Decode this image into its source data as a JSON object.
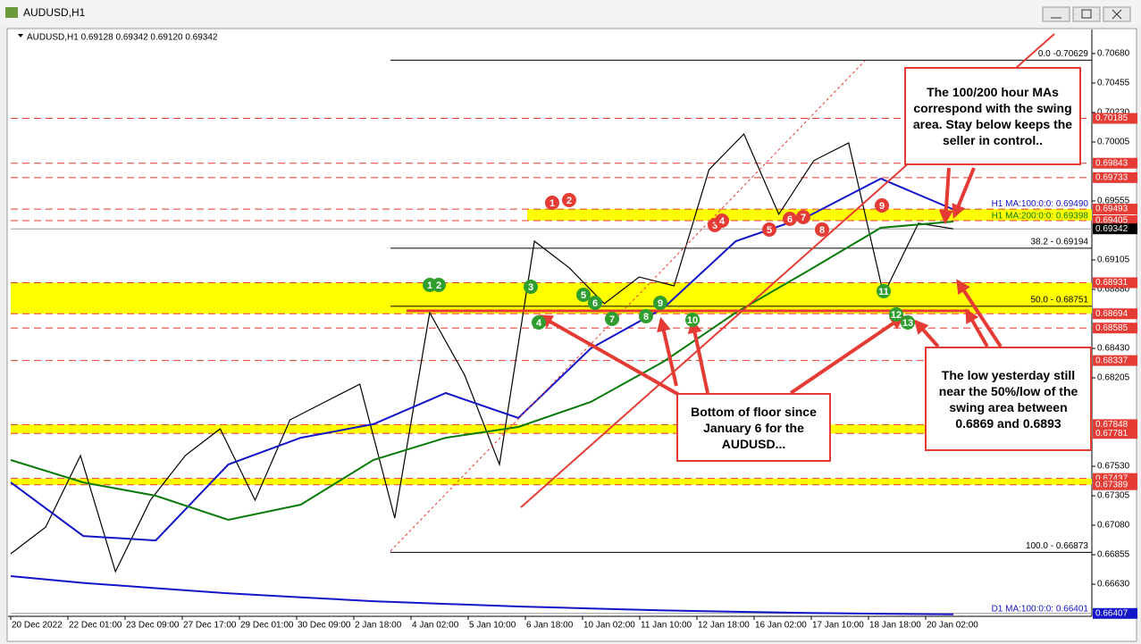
{
  "window": {
    "title": "AUDUSD,H1"
  },
  "chart_data": {
    "type": "line",
    "header": "AUDUSD,H1  0.69128 0.69342 0.69120 0.69342",
    "ylim": [
      0.66385,
      0.7085
    ],
    "yticks": [
      {
        "value": 0.7068,
        "label": "0.70680"
      },
      0.70455,
      {
        "value": 0.7023,
        "label": "0.70230"
      },
      0.70005,
      0.69555,
      0.69105,
      {
        "value": 0.6888,
        "label": "0.68880"
      },
      {
        "value": 0.6843,
        "label": "0.68430"
      },
      0.68205,
      {
        "value": 0.6753,
        "label": "0.67530"
      },
      0.67305,
      {
        "value": 0.6708,
        "label": "0.67080"
      },
      0.66855,
      {
        "value": 0.6663,
        "label": "0.66630"
      }
    ],
    "time_labels": [
      "20 Dec 2022",
      "22 Dec 01:00",
      "23 Dec 09:00",
      "27 Dec 17:00",
      "29 Dec 01:00",
      "30 Dec 09:00",
      "2 Jan 18:00",
      "4 Jan 02:00",
      "5 Jan 10:00",
      "6 Jan 18:00",
      "10 Jan 02:00",
      "11 Jan 10:00",
      "12 Jan 18:00",
      "16 Jan 02:00",
      "17 Jan 10:00",
      "18 Jan 18:00",
      "20 Jan 02:00"
    ],
    "series": [
      {
        "color": "#000000",
        "values": [
          0.66862,
          0.67066,
          0.67612,
          0.66726,
          0.67271,
          0.67612,
          0.67816,
          0.67271,
          0.67885,
          0.68021,
          0.68157,
          0.67135,
          0.68703,
          0.68226,
          0.67544,
          0.69248,
          0.69044,
          0.68771,
          0.68975,
          0.68907,
          0.69794,
          0.70066,
          0.69453,
          0.69862,
          0.69998,
          0.68839,
          0.69385,
          0.69342
        ]
      },
      {
        "name": "H1 MA:100:0:0: 0.69490",
        "color": "#1414c8",
        "values": [
          0.67407,
          0.66998,
          0.66964,
          0.67544,
          0.67748,
          0.67851,
          0.68089,
          0.67898,
          0.6843,
          0.68737,
          0.69248,
          0.69439,
          0.69725,
          0.6949
        ]
      },
      {
        "name": "H1 MA:200:0:0: 0.69398",
        "color": "#0a7a0a",
        "values": [
          0.67578,
          0.67407,
          0.67305,
          0.67121,
          0.67237,
          0.67578,
          0.67748,
          0.6783,
          0.68021,
          0.68328,
          0.68703,
          0.69023,
          0.6935,
          0.69398
        ]
      },
      {
        "name": "D1 MA:100:0:0: 0.66401",
        "color": "#1414c8",
        "values": [
          0.66692,
          0.6664,
          0.666,
          0.6656,
          0.6653,
          0.665,
          0.6648,
          0.6646,
          0.66445,
          0.6643,
          0.6642,
          0.6641,
          0.66405,
          0.66401
        ]
      }
    ],
    "levels": [
      {
        "value": 0.70185,
        "color": "#e53b35",
        "dashed": true
      },
      {
        "value": 0.69843,
        "color": "#e53b35",
        "dashed": true
      },
      {
        "value": 0.69733,
        "color": "#e53b35",
        "dashed": true
      },
      {
        "value": 0.69493,
        "color": "#e53b35",
        "dashed": true
      },
      {
        "value": 0.69405,
        "color": "#e53b35",
        "dashed": true
      },
      {
        "value": 0.68931,
        "color": "#e53b35",
        "dashed": true
      },
      {
        "value": 0.68694,
        "color": "#e53b35",
        "dashed": true
      },
      {
        "value": 0.68585,
        "color": "#e53b35",
        "dashed": true
      },
      {
        "value": 0.68337,
        "color": "#e53b35",
        "dashed": true
      },
      {
        "value": 0.67848,
        "color": "#e53b35",
        "dashed": true
      },
      {
        "value": 0.67781,
        "color": "#e53b35",
        "dashed": true
      },
      {
        "value": 0.67437,
        "color": "#e53b35",
        "dashed": true
      },
      {
        "value": 0.67389,
        "color": "#e53b35",
        "dashed": true
      },
      {
        "value": 0.69342,
        "color": "#000000",
        "dashed": false
      },
      {
        "value": 0.66407,
        "color": "#1414c8",
        "dashed": false
      }
    ],
    "fib_levels": [
      {
        "value": 0.70629,
        "label": "0.0 -0.70629"
      },
      {
        "value": 0.69194,
        "label": "38.2 - 0.69194"
      },
      {
        "value": 0.68751,
        "label": "50.0 - 0.68751"
      },
      {
        "value": 0.66873,
        "label": "100.0 - 0.66873"
      }
    ],
    "red_markers": [
      "1",
      "2",
      "3",
      "4",
      "5",
      "6",
      "7",
      "8",
      "9"
    ],
    "green_markers": [
      "1",
      "2",
      "3",
      "4",
      "5",
      "6",
      "7",
      "8",
      "9",
      "10",
      "11",
      "12",
      "13"
    ],
    "annotations": [
      "The 100/200 hour MAs correspond with the swing area. Stay below keeps the seller in control..",
      "Bottom of floor since January 6 for the AUDUSD...",
      "The low yesterday still near the 50%/low of the swing area between 0.6869 and 0.6893"
    ]
  }
}
